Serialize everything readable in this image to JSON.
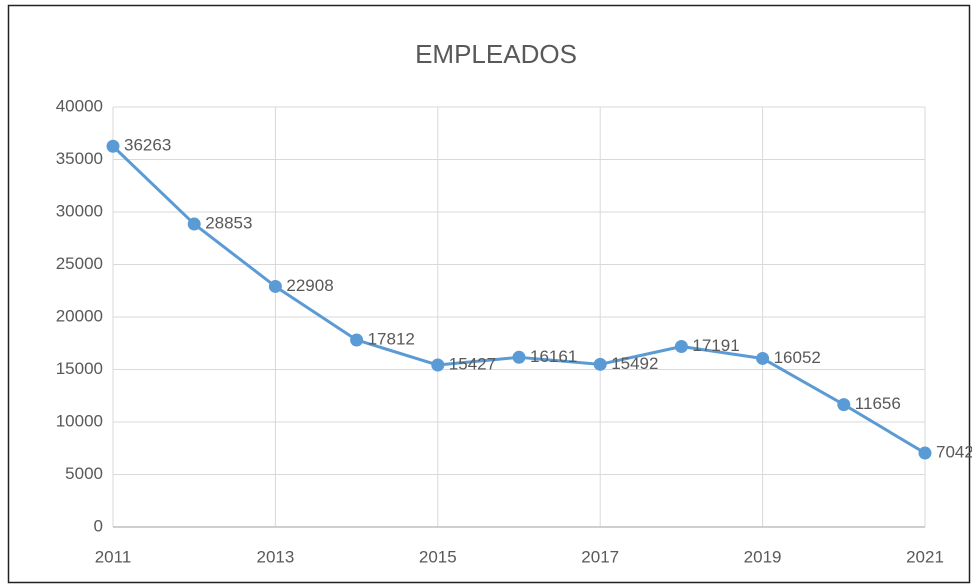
{
  "chart_data": {
    "type": "line",
    "title": "EMPLEADOS",
    "x": [
      2011,
      2012,
      2013,
      2014,
      2015,
      2016,
      2017,
      2018,
      2019,
      2020,
      2021
    ],
    "series": [
      {
        "name": "EMPLEADOS",
        "color": "#5b9bd5",
        "values": [
          36263,
          28853,
          22908,
          17812,
          15427,
          16161,
          15492,
          17191,
          16052,
          11656,
          7042
        ]
      }
    ],
    "xlim": [
      2011,
      2021
    ],
    "xticks": [
      2011,
      2013,
      2015,
      2017,
      2019,
      2021
    ],
    "ylim": [
      0,
      40000
    ],
    "yticks": [
      0,
      5000,
      10000,
      15000,
      20000,
      25000,
      30000,
      35000,
      40000
    ],
    "grid": true
  }
}
